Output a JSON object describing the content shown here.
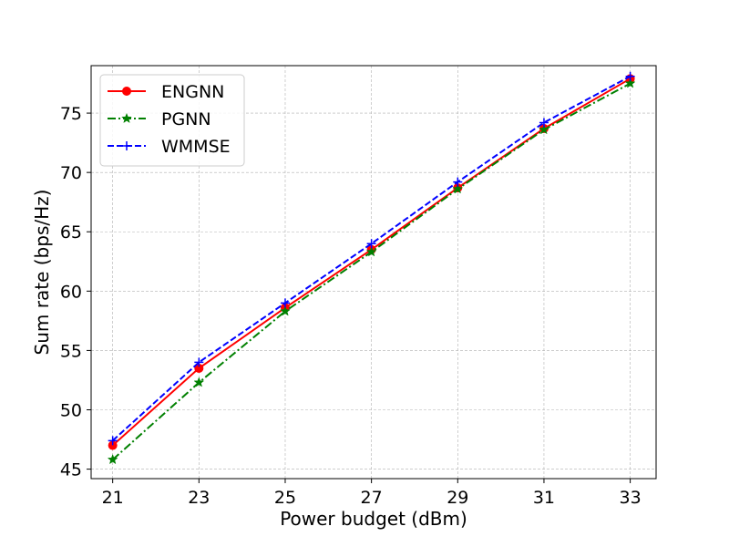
{
  "chart_data": {
    "type": "line",
    "xlabel": "Power budget (dBm)",
    "ylabel": "Sum rate (bps/Hz)",
    "x": [
      21,
      23,
      25,
      27,
      29,
      31,
      33
    ],
    "xlim": [
      20.5,
      33.6
    ],
    "ylim": [
      44.2,
      79.0
    ],
    "xticks": [
      21,
      23,
      25,
      27,
      29,
      31,
      33
    ],
    "yticks": [
      45,
      50,
      55,
      60,
      65,
      70,
      75
    ],
    "grid": true,
    "legend_position": "top-left",
    "series": [
      {
        "name": "ENGNN",
        "values": [
          47.0,
          53.5,
          58.6,
          63.5,
          68.7,
          73.7,
          77.9
        ],
        "color": "#ff0000",
        "dash": "solid",
        "marker": "circle"
      },
      {
        "name": "PGNN",
        "values": [
          45.8,
          52.3,
          58.3,
          63.3,
          68.6,
          73.6,
          77.5
        ],
        "color": "#008000",
        "dash": "dashdot",
        "marker": "star"
      },
      {
        "name": "WMMSE",
        "values": [
          47.4,
          54.0,
          59.0,
          64.0,
          69.2,
          74.2,
          78.1
        ],
        "color": "#0000ff",
        "dash": "dashed",
        "marker": "plus"
      }
    ]
  }
}
